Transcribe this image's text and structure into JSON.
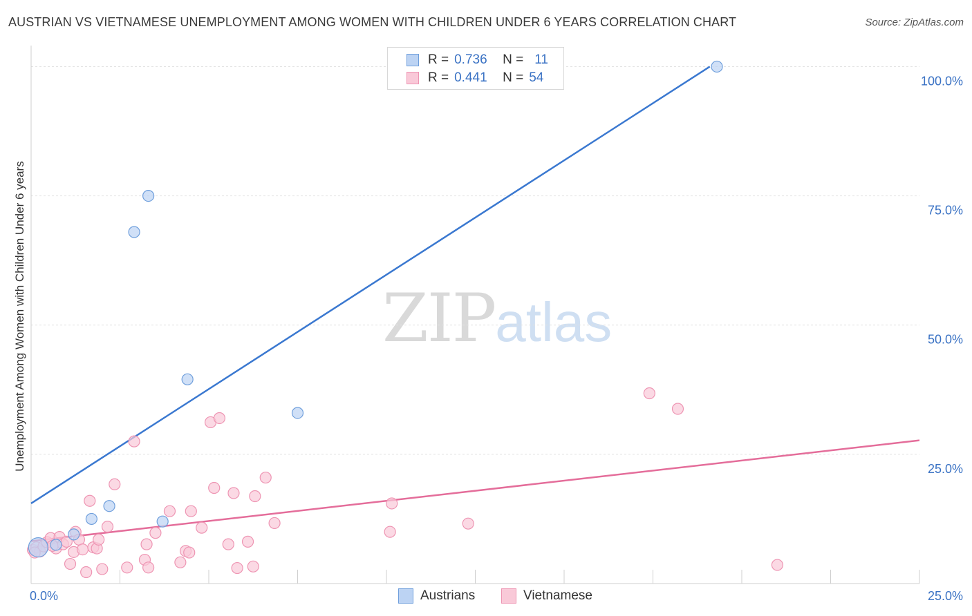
{
  "title": "AUSTRIAN VS VIETNAMESE UNEMPLOYMENT AMONG WOMEN WITH CHILDREN UNDER 6 YEARS CORRELATION CHART",
  "source": "Source: ZipAtlas.com",
  "watermark": {
    "zip": "ZIP",
    "atlas": "atlas"
  },
  "legend_top": {
    "rows": [
      {
        "r_label": "R =",
        "r_value": "0.736",
        "n_label": "N =",
        "n_value": "11"
      },
      {
        "r_label": "R =",
        "r_value": "0.441",
        "n_label": "N =",
        "n_value": "54"
      }
    ]
  },
  "legend_bottom": {
    "austrians": "Austrians",
    "vietnamese": "Vietnamese"
  },
  "colors": {
    "blue_line": "#3a78d0",
    "blue_fill": "#bcd3f3",
    "blue_stroke": "#6f9fdc",
    "pink_line": "#e46d9a",
    "pink_fill": "#f9c9d8",
    "pink_stroke": "#ee95b3",
    "tick_text": "#3a72c4",
    "grid": "#e2e2e2"
  },
  "chart_data": {
    "type": "scatter",
    "title": "AUSTRIAN VS VIETNAMESE UNEMPLOYMENT AMONG WOMEN WITH CHILDREN UNDER 6 YEARS CORRELATION CHART",
    "xlabel": "",
    "ylabel": "Unemployment Among Women with Children Under 6 years",
    "xlim": [
      0,
      25
    ],
    "ylim": [
      0,
      103
    ],
    "x_tick_labels": [
      "0.0%",
      "25.0%"
    ],
    "y_ticks": [
      25,
      50,
      75,
      100
    ],
    "y_tick_labels": [
      "25.0%",
      "50.0%",
      "75.0%",
      "100.0%"
    ],
    "x_grid_ticks": [
      0,
      2.5,
      5,
      7.5,
      10,
      12.5,
      15,
      17.5,
      20,
      22.5,
      25
    ],
    "grid": true,
    "series": [
      {
        "name": "Austrians",
        "R": 0.736,
        "N": 11,
        "points": [
          [
            0.2,
            7.0,
            14
          ],
          [
            0.7,
            7.5,
            8
          ],
          [
            1.2,
            9.5,
            8
          ],
          [
            1.7,
            12.5,
            8
          ],
          [
            2.2,
            15.0,
            8
          ],
          [
            2.9,
            68.0,
            8
          ],
          [
            3.3,
            75.0,
            8
          ],
          [
            3.7,
            12.0,
            8
          ],
          [
            4.4,
            39.5,
            8
          ],
          [
            7.5,
            33.0,
            8
          ],
          [
            19.3,
            100.0,
            8
          ]
        ],
        "trend": {
          "x": [
            0,
            19.1
          ],
          "y": [
            15.5,
            100.0
          ]
        }
      },
      {
        "name": "Vietnamese",
        "R": 0.441,
        "N": 54,
        "points": [
          [
            0.05,
            6.5
          ],
          [
            0.15,
            7.0
          ],
          [
            0.25,
            6.2
          ],
          [
            0.35,
            7.2
          ],
          [
            0.45,
            8.0
          ],
          [
            0.55,
            8.8
          ],
          [
            0.7,
            6.8
          ],
          [
            0.8,
            9.0
          ],
          [
            0.9,
            7.6
          ],
          [
            1.0,
            8.1
          ],
          [
            1.1,
            3.8
          ],
          [
            1.2,
            6.1
          ],
          [
            1.25,
            10.0
          ],
          [
            1.35,
            8.5
          ],
          [
            1.45,
            6.6
          ],
          [
            1.55,
            2.2
          ],
          [
            1.65,
            16.0
          ],
          [
            1.75,
            7.0
          ],
          [
            1.85,
            6.8
          ],
          [
            1.9,
            8.5
          ],
          [
            2.0,
            2.8
          ],
          [
            2.15,
            11.0
          ],
          [
            2.35,
            19.2
          ],
          [
            2.7,
            3.1
          ],
          [
            2.9,
            27.5
          ],
          [
            3.2,
            4.6
          ],
          [
            3.25,
            7.6
          ],
          [
            3.3,
            3.1
          ],
          [
            3.5,
            9.8
          ],
          [
            3.9,
            14.0
          ],
          [
            4.2,
            4.1
          ],
          [
            4.35,
            6.3
          ],
          [
            4.45,
            6.0
          ],
          [
            4.5,
            14.0
          ],
          [
            4.8,
            10.8
          ],
          [
            5.05,
            31.2
          ],
          [
            5.15,
            18.5
          ],
          [
            5.3,
            32.0
          ],
          [
            5.55,
            7.6
          ],
          [
            5.7,
            17.5
          ],
          [
            5.8,
            3.0
          ],
          [
            6.1,
            8.1
          ],
          [
            6.25,
            3.3
          ],
          [
            6.3,
            16.9
          ],
          [
            6.6,
            20.5
          ],
          [
            6.85,
            11.7
          ],
          [
            10.1,
            10.0
          ],
          [
            10.15,
            15.5
          ],
          [
            12.3,
            11.6
          ],
          [
            17.4,
            36.8
          ],
          [
            18.2,
            33.8
          ],
          [
            21.0,
            3.6
          ],
          [
            0.1,
            6.0
          ],
          [
            0.6,
            7.3
          ]
        ],
        "trend": {
          "x": [
            0,
            25
          ],
          "y": [
            8.2,
            27.7
          ]
        }
      }
    ]
  }
}
